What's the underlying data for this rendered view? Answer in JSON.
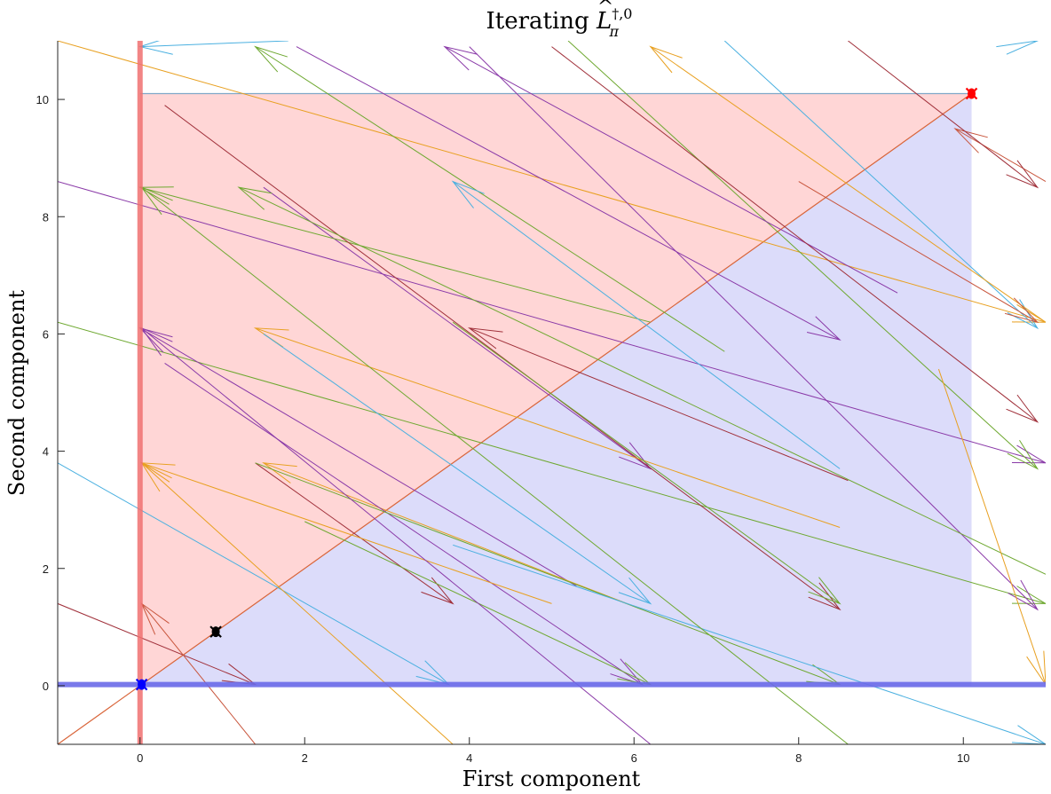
{
  "chart_data": {
    "type": "quiver",
    "title": {
      "prefix": "Iterating ",
      "symbol": "L",
      "accent": "^",
      "subscript": "π",
      "superscript": "†,0"
    },
    "xlabel": "First component",
    "ylabel": "Second component",
    "xlim": [
      -1,
      11
    ],
    "ylim": [
      -1,
      11
    ],
    "xticks": [
      0,
      2,
      4,
      6,
      8,
      10
    ],
    "yticks": [
      0,
      2,
      4,
      6,
      8,
      10
    ],
    "grid": false,
    "regions": [
      {
        "name": "upper-red-region",
        "color": "#ffd6d6",
        "polygon": [
          [
            0,
            0
          ],
          [
            0,
            10.1
          ],
          [
            10.1,
            10.1
          ]
        ]
      },
      {
        "name": "lower-blue-region",
        "color": "#dcdcfa",
        "polygon": [
          [
            0,
            0
          ],
          [
            10.1,
            0
          ],
          [
            10.1,
            10.1
          ]
        ]
      }
    ],
    "thick_lines": [
      {
        "name": "vertical-red-band",
        "from": [
          0,
          -1
        ],
        "to": [
          0,
          11
        ],
        "color": "#f07070",
        "width": 6,
        "opacity": 0.85
      },
      {
        "name": "horizontal-blue-band",
        "from": [
          -1,
          0.02
        ],
        "to": [
          11,
          0.02
        ],
        "color": "#6a6ae8",
        "width": 6,
        "opacity": 0.9
      }
    ],
    "lines": [
      {
        "name": "diagonal-line",
        "from": [
          -1,
          -1
        ],
        "to": [
          10.1,
          10.1
        ],
        "color": "#d9653a",
        "width": 1.2
      },
      {
        "name": "box-top-line",
        "from": [
          0,
          10.1
        ],
        "to": [
          10.1,
          10.1
        ],
        "color": "#7fa8c8",
        "width": 1.2
      }
    ],
    "arrows": [
      {
        "from": [
          -1,
          11
        ],
        "to": [
          11,
          6.2
        ],
        "color": "#e8a020"
      },
      {
        "from": [
          -1,
          8.6
        ],
        "to": [
          11,
          3.8
        ],
        "color": "#8a3aa8"
      },
      {
        "from": [
          -1,
          6.2
        ],
        "to": [
          11,
          1.4
        ],
        "color": "#6ea830"
      },
      {
        "from": [
          -1,
          3.8
        ],
        "to": [
          3.75,
          0.02
        ],
        "color": "#4ab0e0"
      },
      {
        "from": [
          -1,
          1.4
        ],
        "to": [
          1.4,
          0.02
        ],
        "color": "#a0303a"
      },
      {
        "from": [
          11,
          8.6
        ],
        "to": [
          9.9,
          9.5
        ],
        "color": "#c8553c"
      },
      {
        "from": [
          8.6,
          11
        ],
        "to": [
          10.9,
          8.5
        ],
        "color": "#a0303a"
      },
      {
        "from": [
          7.1,
          11
        ],
        "to": [
          10.9,
          6.1
        ],
        "color": "#4ab0e0"
      },
      {
        "from": [
          11,
          6.2
        ],
        "to": [
          6.2,
          10.9
        ],
        "color": "#e8a020"
      },
      {
        "from": [
          5.2,
          11
        ],
        "to": [
          10.9,
          3.7
        ],
        "color": "#6ea830"
      },
      {
        "from": [
          9.2,
          6.7
        ],
        "to": [
          3.7,
          10.9
        ],
        "color": "#8a3aa8"
      },
      {
        "from": [
          1.8,
          11
        ],
        "to": [
          0,
          10.9
        ],
        "color": "#4ab0e0"
      },
      {
        "from": [
          7.1,
          5.7
        ],
        "to": [
          1.4,
          10.9
        ],
        "color": "#6ea830"
      },
      {
        "from": [
          1.9,
          10.9
        ],
        "to": [
          8.5,
          5.9
        ],
        "color": "#8a3aa8"
      },
      {
        "from": [
          5.0,
          10.9
        ],
        "to": [
          10.9,
          4.5
        ],
        "color": "#a0303a"
      },
      {
        "from": [
          1.5,
          8.5
        ],
        "to": [
          6.2,
          3.7
        ],
        "color": "#8a3aa8"
      },
      {
        "from": [
          6.2,
          6.2
        ],
        "to": [
          0,
          8.5
        ],
        "color": "#6ea830"
      },
      {
        "from": [
          0.3,
          9.9
        ],
        "to": [
          8.5,
          1.3
        ],
        "color": "#a0303a"
      },
      {
        "from": [
          8.5,
          3.7
        ],
        "to": [
          3.8,
          8.6
        ],
        "color": "#4ab0e0"
      },
      {
        "from": [
          4.0,
          10.9
        ],
        "to": [
          10.9,
          1.3
        ],
        "color": "#8a3aa8"
      },
      {
        "from": [
          8.0,
          8.6
        ],
        "to": [
          10.9,
          6.2
        ],
        "color": "#c8553c"
      },
      {
        "from": [
          5.3,
          1.7
        ],
        "to": [
          0,
          6.1
        ],
        "color": "#8a3aa8"
      },
      {
        "from": [
          8.5,
          2.7
        ],
        "to": [
          1.4,
          6.1
        ],
        "color": "#e8a020"
      },
      {
        "from": [
          1.5,
          6.0
        ],
        "to": [
          6.2,
          1.4
        ],
        "color": "#4ab0e0"
      },
      {
        "from": [
          3.8,
          6.2
        ],
        "to": [
          8.5,
          1.4
        ],
        "color": "#6ea830"
      },
      {
        "from": [
          8.6,
          3.5
        ],
        "to": [
          4.0,
          6.1
        ],
        "color": "#a0303a"
      },
      {
        "from": [
          1.4,
          3.8
        ],
        "to": [
          3.8,
          1.4
        ],
        "color": "#a0303a"
      },
      {
        "from": [
          6.1,
          1.3
        ],
        "to": [
          1.5,
          3.8
        ],
        "color": "#e8a020"
      },
      {
        "from": [
          0.3,
          5.5
        ],
        "to": [
          6.1,
          0.02
        ],
        "color": "#8a3aa8"
      },
      {
        "from": [
          1.4,
          3.8
        ],
        "to": [
          8.5,
          0.02
        ],
        "color": "#6ea830"
      },
      {
        "from": [
          5.0,
          1.4
        ],
        "to": [
          0.02,
          3.8
        ],
        "color": "#e8a020"
      },
      {
        "from": [
          2.0,
          2.8
        ],
        "to": [
          6.2,
          0.02
        ],
        "color": "#6ea830"
      },
      {
        "from": [
          3.8,
          2.4
        ],
        "to": [
          11,
          -1
        ],
        "color": "#4ab0e0"
      },
      {
        "from": [
          8.6,
          -1
        ],
        "to": [
          0.02,
          8.5
        ],
        "color": "#6ea830"
      },
      {
        "from": [
          6.2,
          -1
        ],
        "to": [
          0.02,
          6.1
        ],
        "color": "#8a3aa8"
      },
      {
        "from": [
          3.8,
          -1
        ],
        "to": [
          0.02,
          3.8
        ],
        "color": "#e8a020"
      },
      {
        "from": [
          1.4,
          -1
        ],
        "to": [
          0.02,
          1.4
        ],
        "color": "#c8553c"
      },
      {
        "from": [
          11.0,
          1.9
        ],
        "to": [
          1.2,
          8.5
        ],
        "color": "#6ea830"
      },
      {
        "from": [
          9.7,
          5.4
        ],
        "to": [
          11,
          0.02
        ],
        "color": "#e8a020"
      },
      {
        "from": [
          10.4,
          10.9
        ],
        "to": [
          10.9,
          11
        ],
        "color": "#4ab0e0"
      }
    ],
    "markers": [
      {
        "name": "red-marker",
        "x": 10.1,
        "y": 10.1,
        "color": "#ff0000"
      },
      {
        "name": "black-marker",
        "x": 0.92,
        "y": 0.92,
        "color": "#000000"
      },
      {
        "name": "blue-marker",
        "x": 0.02,
        "y": 0.02,
        "color": "#0000ff"
      }
    ]
  }
}
